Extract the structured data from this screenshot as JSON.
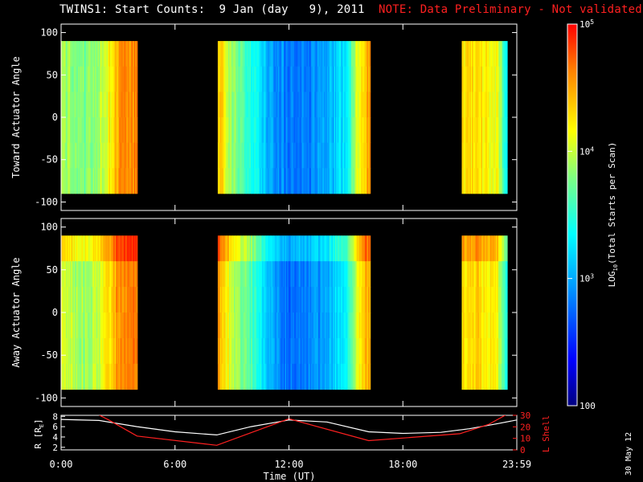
{
  "title": {
    "main": "TWINS1: Start Counts:  9 Jan (day   9), 2011",
    "note": "NOTE: Data Preliminary - Not validated"
  },
  "date_stamp": "30 May 12",
  "colors": {
    "background": "#000000",
    "axes": "#ffffff",
    "note": "#ff2020",
    "l_shell": "#ff2020",
    "r_line": "#ffffff"
  },
  "chart_data": [
    {
      "type": "heatmap",
      "name": "toward",
      "ylabel": "Toward Actuator Angle",
      "ylim": [
        -110,
        110
      ],
      "yticks": [
        100,
        50,
        0,
        -50,
        -100
      ],
      "angle_range": [
        -90,
        90
      ],
      "xlim": [
        0,
        24
      ],
      "xticks": [
        0,
        6,
        12,
        18,
        24
      ],
      "data_intervals_hours": [
        [
          0.0,
          4.0
        ],
        [
          8.25,
          16.25
        ],
        [
          21.1,
          23.5
        ]
      ],
      "colormap": "rainbow-log",
      "color_range": [
        100,
        100000
      ],
      "level_profile": {
        "hours": [
          0.0,
          0.5,
          1.0,
          1.7,
          2.3,
          3.0,
          3.9,
          8.3,
          9.0,
          10.0,
          11.0,
          12.0,
          13.0,
          14.0,
          15.0,
          15.8,
          16.2,
          21.1,
          22.0,
          23.0,
          23.5
        ],
        "log_counts": [
          3.95,
          3.9,
          3.75,
          3.8,
          4.0,
          4.5,
          4.6,
          4.45,
          3.85,
          3.5,
          3.0,
          2.8,
          2.85,
          3.0,
          3.3,
          4.3,
          4.5,
          4.2,
          4.3,
          4.1,
          3.3
        ]
      }
    },
    {
      "type": "heatmap",
      "name": "away",
      "ylabel": "Away Actuator Angle",
      "ylim": [
        -110,
        110
      ],
      "yticks": [
        100,
        50,
        0,
        -50,
        -100
      ],
      "angle_range": [
        -90,
        90
      ],
      "xlim": [
        0,
        24
      ],
      "xticks": [
        0,
        6,
        12,
        18,
        24
      ],
      "data_intervals_hours": [
        [
          0.0,
          4.0
        ],
        [
          8.25,
          16.25
        ],
        [
          21.1,
          23.5
        ]
      ],
      "colormap": "rainbow-log",
      "color_range": [
        100,
        100000
      ],
      "level_profile": {
        "hours": [
          0.0,
          0.5,
          1.0,
          1.7,
          2.3,
          3.0,
          3.9,
          8.3,
          9.0,
          10.0,
          11.0,
          12.0,
          13.0,
          14.0,
          15.0,
          15.8,
          16.2,
          21.1,
          22.0,
          23.0,
          23.5
        ],
        "log_counts": [
          4.05,
          4.0,
          3.9,
          3.95,
          4.1,
          4.55,
          4.6,
          4.5,
          4.0,
          3.6,
          3.05,
          2.75,
          2.8,
          3.0,
          3.35,
          4.3,
          4.5,
          4.25,
          4.3,
          4.1,
          3.4
        ]
      }
    },
    {
      "type": "colorbar",
      "label_parts": [
        "LOG",
        "10",
        "(Total Starts per Scan)"
      ],
      "ticks": [
        {
          "value": 100000,
          "base": "10",
          "exp": "5"
        },
        {
          "value": 10000,
          "base": "10",
          "exp": "4"
        },
        {
          "value": 1000,
          "base": "10",
          "exp": "3"
        },
        {
          "value": 100,
          "base": "100",
          "exp": ""
        }
      ],
      "range": [
        100,
        100000
      ],
      "scale": "log"
    },
    {
      "type": "line",
      "name": "orbit",
      "xlabel": "Time (UT)",
      "xlim": [
        0,
        24
      ],
      "xticks": [
        0,
        6,
        12,
        18,
        24
      ],
      "xticklabels": [
        "0:00",
        "6:00",
        "12:00",
        "18:00",
        "23:59"
      ],
      "ylabel_left_parts": [
        "R [R",
        "E",
        "]"
      ],
      "ylim_left": [
        1.5,
        8.2
      ],
      "yticks_left": [
        2,
        4,
        6,
        8
      ],
      "ylabel_right": "L Shell",
      "ylim_right": [
        0,
        30
      ],
      "yticks_right": [
        0,
        10,
        20,
        30
      ],
      "series": [
        {
          "name": "R",
          "axis": "left",
          "color": "#ffffff",
          "x": [
            0,
            2,
            4,
            6,
            8.2,
            10,
            12,
            14,
            16.2,
            18,
            20,
            21.5,
            23,
            24
          ],
          "y": [
            7.4,
            7.2,
            6.0,
            5.0,
            4.4,
            6.0,
            7.3,
            6.9,
            5.0,
            4.7,
            4.9,
            5.6,
            6.6,
            7.3
          ]
        },
        {
          "name": "L Shell",
          "axis": "right",
          "color": "#ff2020",
          "x": [
            1.8,
            2.5,
            4.0,
            8.2,
            12.0,
            16.2,
            21.0,
            22.5,
            23.6
          ],
          "y": [
            32,
            26,
            12,
            4,
            27,
            8,
            14,
            22,
            32
          ]
        }
      ]
    }
  ]
}
